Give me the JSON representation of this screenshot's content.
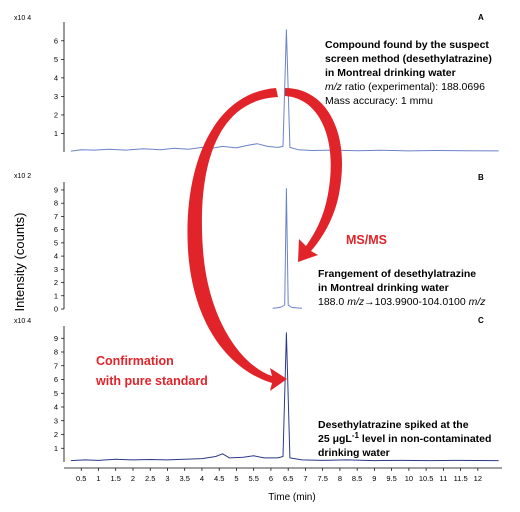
{
  "chart_data": [
    {
      "type": "line",
      "panel_label": "A",
      "exponent_label": "x10 4",
      "y_ticks": [
        "1",
        "2",
        "3",
        "4",
        "5",
        "6"
      ],
      "ylim": [
        0,
        6.8
      ],
      "xlim": [
        0,
        12.7
      ],
      "series_color": "#6b83c8",
      "peak": {
        "x": 6.45,
        "y": 6.6
      },
      "baseline": [
        [
          0.2,
          0.05
        ],
        [
          0.5,
          0.12
        ],
        [
          0.9,
          0.1
        ],
        [
          1.3,
          0.15
        ],
        [
          1.8,
          0.1
        ],
        [
          2.3,
          0.18
        ],
        [
          2.8,
          0.12
        ],
        [
          3.2,
          0.2
        ],
        [
          3.6,
          0.15
        ],
        [
          4.0,
          0.25
        ],
        [
          4.3,
          0.2
        ],
        [
          4.6,
          0.3
        ],
        [
          5.0,
          0.22
        ],
        [
          5.3,
          0.35
        ],
        [
          5.6,
          0.45
        ],
        [
          5.9,
          0.3
        ],
        [
          6.2,
          0.25
        ],
        [
          6.35,
          0.3
        ],
        [
          6.45,
          6.6
        ],
        [
          6.55,
          0.25
        ],
        [
          6.8,
          0.12
        ],
        [
          7.2,
          0.08
        ],
        [
          7.8,
          0.1
        ],
        [
          8.5,
          0.07
        ],
        [
          9.2,
          0.09
        ],
        [
          10.0,
          0.06
        ],
        [
          10.8,
          0.08
        ],
        [
          11.6,
          0.07
        ],
        [
          12.6,
          0.06
        ]
      ],
      "annotation": {
        "line1": "Compound found by the suspect",
        "line2": "screen method (desethylatrazine)",
        "line3": "in Montreal drinking water",
        "line4_italic": "m/z",
        "line4_rest": " ratio (experimental): 188.0696",
        "line5": "Mass accuracy: 1 mmu"
      }
    },
    {
      "type": "line",
      "panel_label": "B",
      "exponent_label": "x10 2",
      "y_ticks": [
        "0",
        "1",
        "2",
        "3",
        "4",
        "5",
        "6",
        "7",
        "8",
        "9"
      ],
      "ylim": [
        0,
        9.3
      ],
      "xlim": [
        0,
        12.7
      ],
      "series_color": "#6b83c8",
      "peak": {
        "x": 6.45,
        "y": 9.1
      },
      "baseline": [
        [
          6.05,
          0.05
        ],
        [
          6.2,
          0.1
        ],
        [
          6.3,
          0.15
        ],
        [
          6.4,
          0.3
        ],
        [
          6.45,
          9.1
        ],
        [
          6.5,
          0.3
        ],
        [
          6.6,
          0.12
        ],
        [
          6.75,
          0.08
        ],
        [
          6.9,
          0.05
        ]
      ],
      "annotation": {
        "line1": "Frangement of desethylatrazine",
        "line2": "in Montreal drinking water",
        "line3_a": "188.0 ",
        "line3_b_italic": "m/z",
        "line3_c": "→103.9900-104.0100 ",
        "line3_d_italic": "m/z"
      }
    },
    {
      "type": "line",
      "panel_label": "C",
      "exponent_label": "x10 4",
      "y_ticks": [
        "1",
        "2",
        "3",
        "4",
        "5",
        "6",
        "7",
        "8",
        "9"
      ],
      "ylim": [
        0,
        9.6
      ],
      "xlim": [
        0,
        12.7
      ],
      "series_color": "#2b3a8a",
      "peak": {
        "x": 6.45,
        "y": 9.4
      },
      "baseline": [
        [
          0.2,
          0.1
        ],
        [
          0.6,
          0.15
        ],
        [
          1.0,
          0.12
        ],
        [
          1.5,
          0.2
        ],
        [
          2.0,
          0.15
        ],
        [
          2.5,
          0.18
        ],
        [
          3.0,
          0.15
        ],
        [
          3.5,
          0.2
        ],
        [
          4.0,
          0.25
        ],
        [
          4.4,
          0.4
        ],
        [
          4.6,
          0.6
        ],
        [
          4.8,
          0.3
        ],
        [
          5.2,
          0.35
        ],
        [
          5.5,
          0.45
        ],
        [
          5.8,
          0.3
        ],
        [
          6.2,
          0.3
        ],
        [
          6.35,
          0.4
        ],
        [
          6.45,
          9.4
        ],
        [
          6.55,
          0.3
        ],
        [
          6.9,
          0.15
        ],
        [
          7.5,
          0.12
        ],
        [
          8.2,
          0.15
        ],
        [
          9.0,
          0.1
        ],
        [
          9.8,
          0.12
        ],
        [
          10.6,
          0.1
        ],
        [
          11.4,
          0.12
        ],
        [
          12.6,
          0.1
        ]
      ],
      "annotation": {
        "line1": "Desethylatrazine spiked at the",
        "line2_a": "25 μgL",
        "line2_sup": "-1",
        "line2_b": " level in non-contaminated",
        "line3": "drinking water"
      }
    }
  ],
  "x_ticks": [
    "0.5",
    "1",
    "1.5",
    "2",
    "2.5",
    "3",
    "3.5",
    "4",
    "4.5",
    "5",
    "5.5",
    "6",
    "6.5",
    "7",
    "7.5",
    "8",
    "8.5",
    "9",
    "9.5",
    "10",
    "10.5",
    "11",
    "11.5",
    "12"
  ],
  "xlabel": "Time (min)",
  "ylabel": "Intensity (counts)",
  "arrow_labels": {
    "msms": "MS/MS",
    "confirm1": "Confirmation",
    "confirm2": "with pure standard"
  },
  "colors": {
    "arrow": "#e0242a",
    "axis": "#000000"
  }
}
